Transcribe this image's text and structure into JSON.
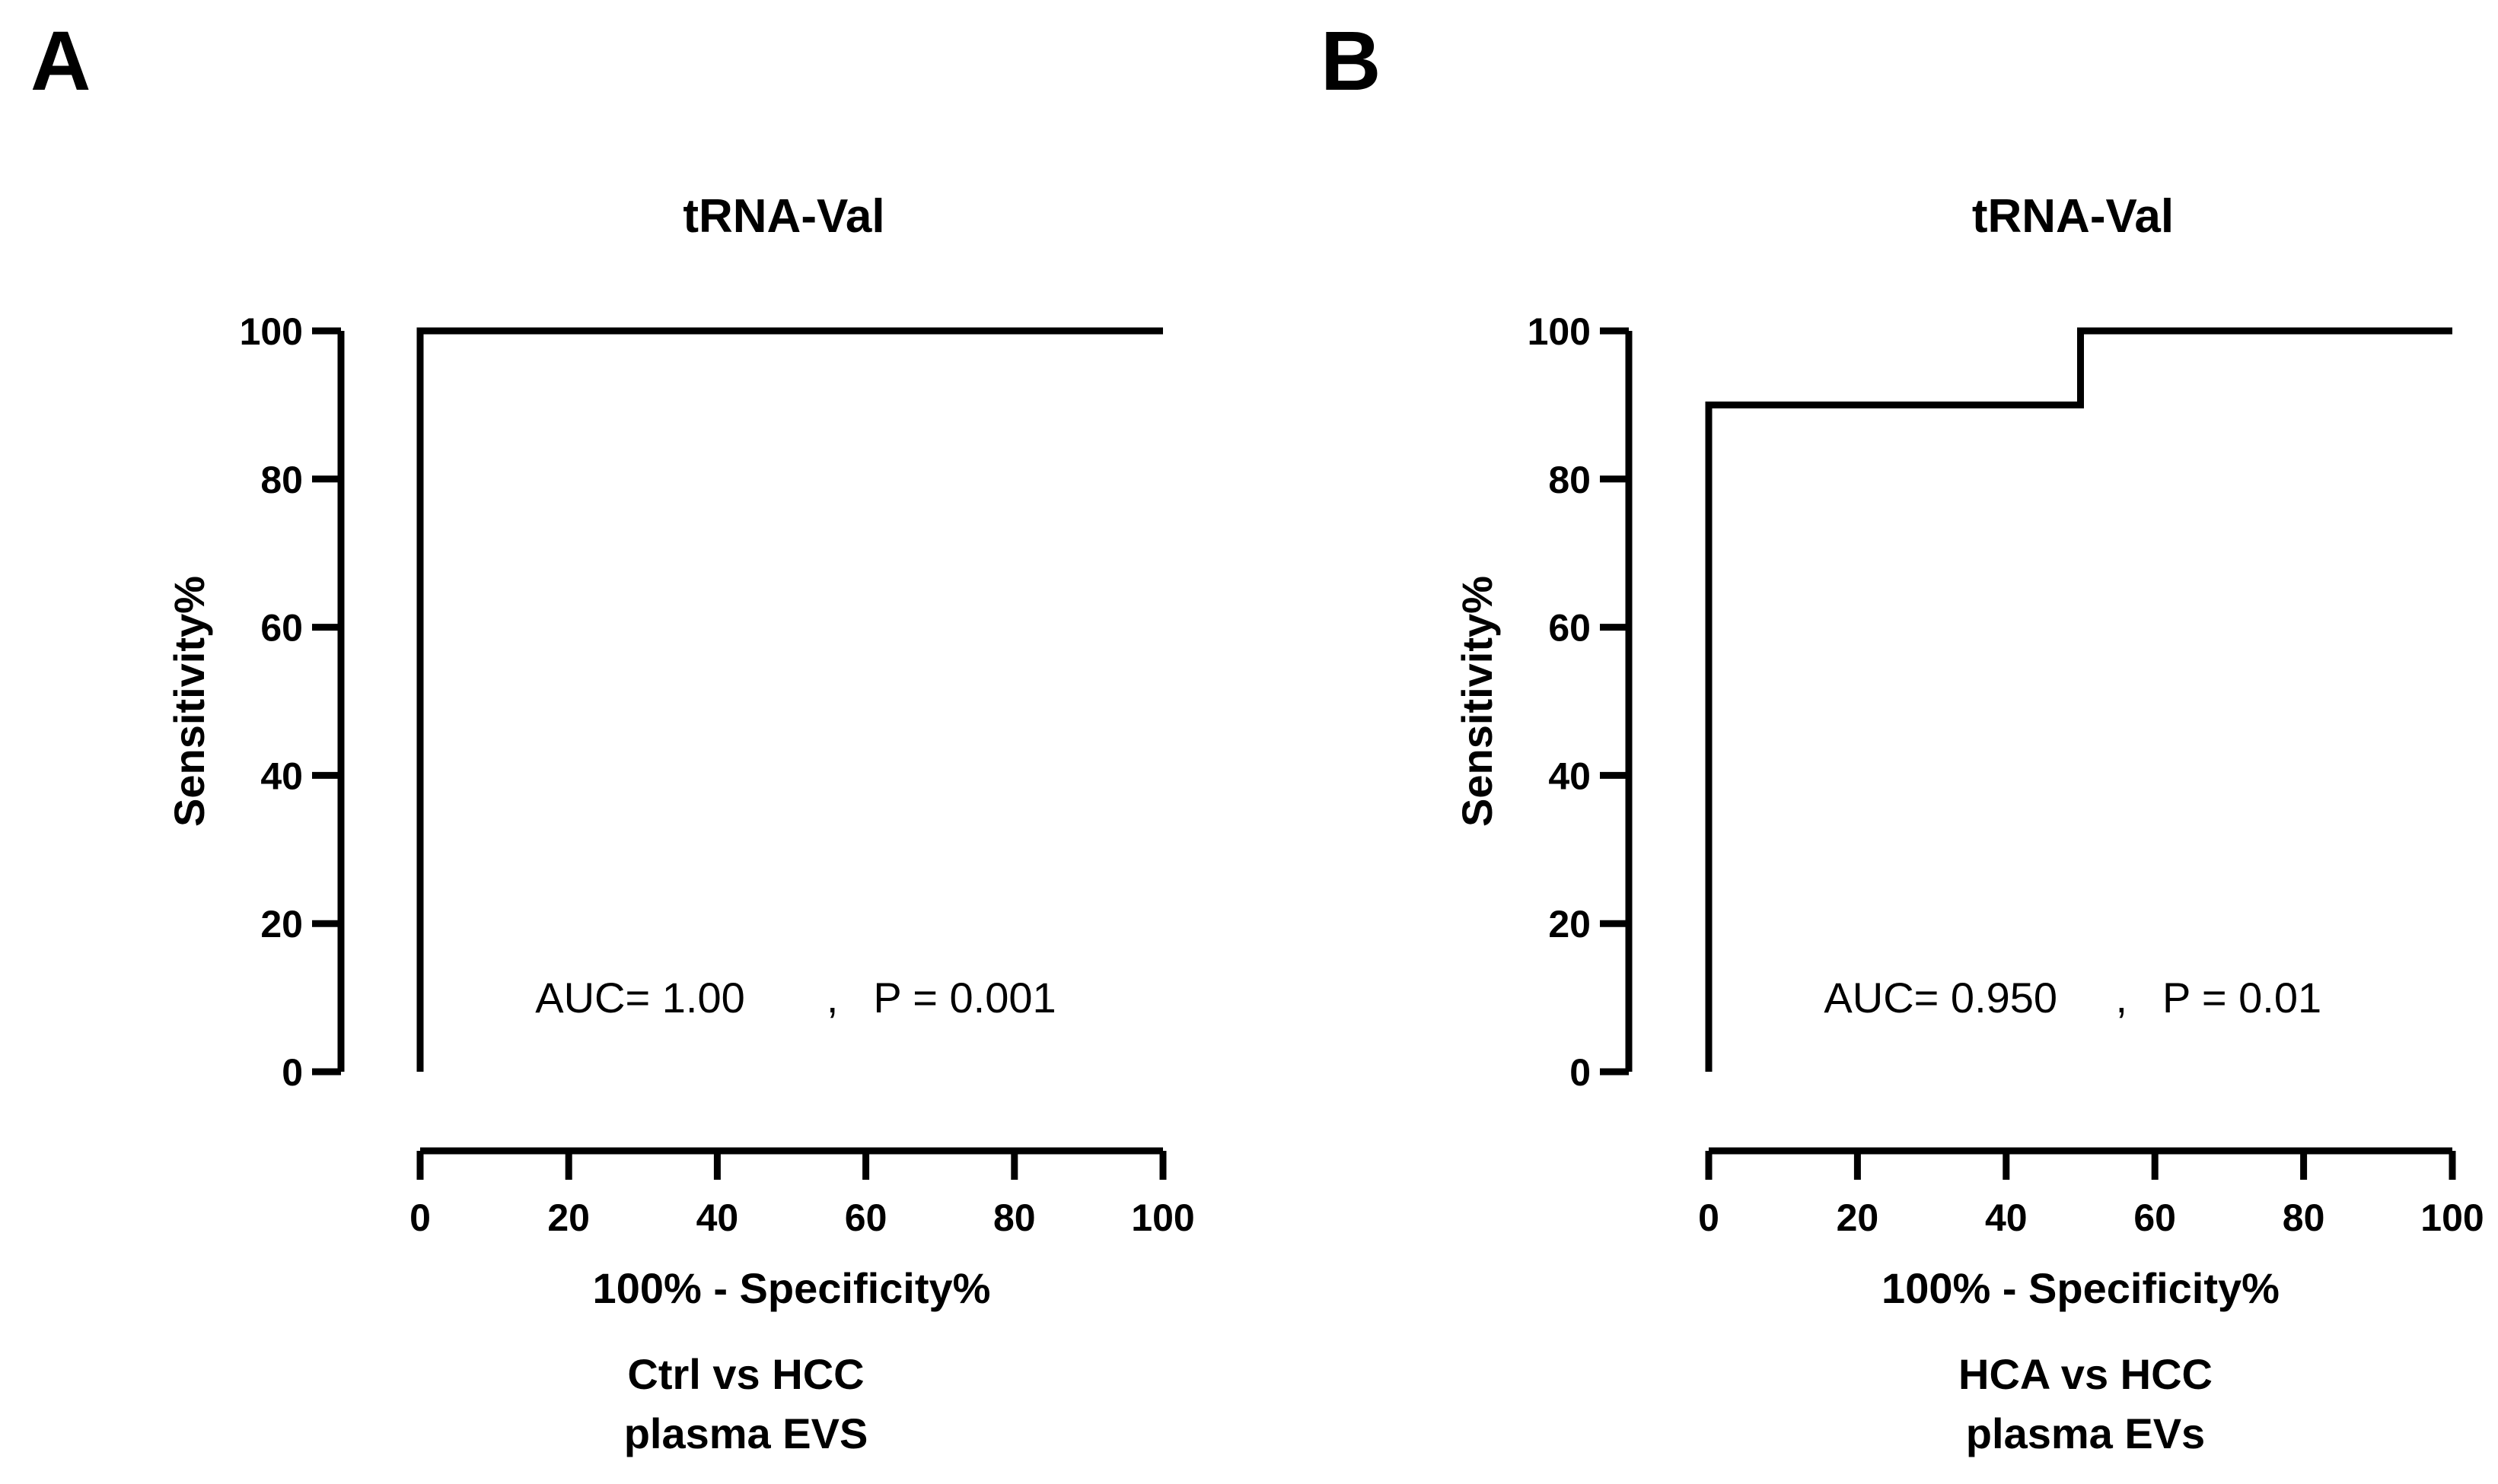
{
  "chart_data": [
    {
      "type": "line",
      "panel_label": "A",
      "title": "tRNA-Val",
      "xlabel": "100% - Specificity%",
      "ylabel": "Sensitivity%",
      "xlim": [
        0,
        100
      ],
      "ylim": [
        0,
        100
      ],
      "xticks": [
        0,
        20,
        40,
        60,
        80,
        100
      ],
      "yticks": [
        0,
        20,
        40,
        60,
        80,
        100
      ],
      "series": [
        {
          "x": [
            0,
            0,
            100
          ],
          "y": [
            0,
            100,
            100
          ]
        }
      ],
      "annotation": {
        "auc": "AUC= 1.00",
        "separator": ",",
        "p": "P = 0.001"
      },
      "caption": [
        "Ctrl vs HCC",
        "plasma EVS"
      ]
    },
    {
      "type": "line",
      "panel_label": "B",
      "title": "tRNA-Val",
      "xlabel": "100% - Specificity%",
      "ylabel": "Sensitivity%",
      "xlim": [
        0,
        100
      ],
      "ylim": [
        0,
        100
      ],
      "xticks": [
        0,
        20,
        40,
        60,
        80,
        100
      ],
      "yticks": [
        0,
        20,
        40,
        60,
        80,
        100
      ],
      "series": [
        {
          "x": [
            0,
            0,
            50,
            50,
            100
          ],
          "y": [
            0,
            90,
            90,
            100,
            100
          ]
        }
      ],
      "annotation": {
        "auc": "AUC= 0.950",
        "separator": ",",
        "p": "P = 0.01"
      },
      "caption": [
        "HCA vs HCC",
        "plasma EVs"
      ]
    }
  ]
}
